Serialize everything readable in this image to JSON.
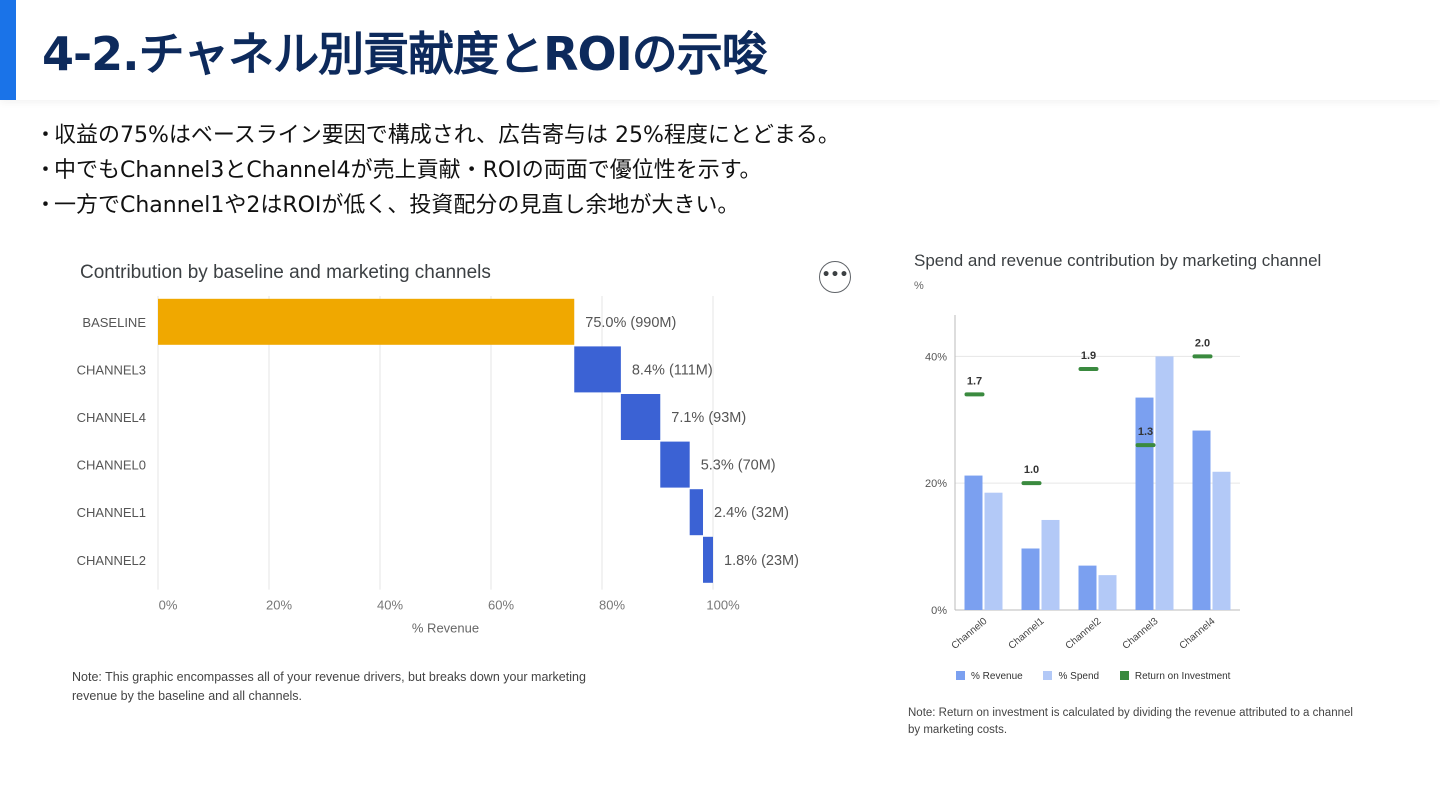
{
  "header": {
    "title": "4-2.チャネル別貢献度とROIの示唆",
    "accent_color": "#1a73e8"
  },
  "bullets": [
    {
      "marker": "･",
      "text": "収益の75%はベースライン要因で構成され、広告寄与は 25%程度にとどまる。"
    },
    {
      "marker": "･",
      "text": "中でもChannel3とChannel4が売上貢献・ROIの両面で優位性を示す。"
    },
    {
      "marker": "･",
      "text": "一方でChannel1や2はROIが低く、投資配分の見直し余地が大きい。"
    }
  ],
  "chart_data": [
    {
      "type": "bar",
      "orientation": "horizontal-waterfall",
      "title": "Contribution by baseline and marketing channels",
      "categories": [
        "BASELINE",
        "CHANNEL3",
        "CHANNEL4",
        "CHANNEL0",
        "CHANNEL1",
        "CHANNEL2"
      ],
      "values": [
        75.0,
        8.4,
        7.1,
        5.3,
        2.4,
        1.8
      ],
      "data_labels": [
        "75.0% (990M)",
        "8.4% (111M)",
        "7.1% (93M)",
        "5.3% (70M)",
        "2.4% (32M)",
        "1.8% (23M)"
      ],
      "colors": [
        "#f0a800",
        "#3b62d4",
        "#3b62d4",
        "#3b62d4",
        "#3b62d4",
        "#3b62d4"
      ],
      "xlabel": "% Revenue",
      "xticks": [
        "0%",
        "20%",
        "40%",
        "60%",
        "80%",
        "100%"
      ],
      "xlim": [
        0,
        100
      ],
      "grid": true,
      "menu_icon": "more-horizontal-icon",
      "note": "Note: This graphic encompasses all of your revenue drivers, but breaks down your marketing revenue by the baseline and all channels."
    },
    {
      "type": "bar",
      "title": "Spend and revenue contribution by marketing channel",
      "unit_label": "%",
      "categories": [
        "Channel0",
        "Channel1",
        "Channel2",
        "Channel3",
        "Channel4"
      ],
      "series": [
        {
          "name": "% Revenue",
          "values": [
            21.2,
            9.7,
            7.0,
            33.5,
            28.3
          ],
          "color": "#7ba0f0"
        },
        {
          "name": "% Spend",
          "values": [
            18.5,
            14.2,
            5.5,
            40.0,
            21.8
          ],
          "color": "#b3c9f7"
        }
      ],
      "roi": {
        "name": "Return on Investment",
        "values": [
          1.7,
          1.0,
          1.9,
          1.3,
          2.0
        ],
        "color": "#3a8a3f"
      },
      "yticks": [
        "0%",
        "20%",
        "40%"
      ],
      "ylim": [
        0,
        44
      ],
      "grid": true,
      "legend_position": "bottom",
      "note": "Note: Return on investment is calculated by dividing the revenue attributed to a channel by marketing costs."
    }
  ]
}
